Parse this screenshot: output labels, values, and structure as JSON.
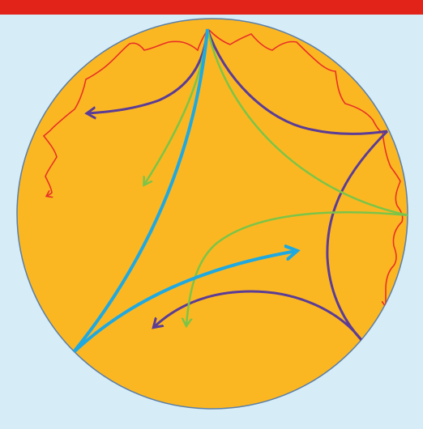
{
  "colors": {
    "background": "#d6ecf7",
    "top_bar": "#e2231a",
    "disk_fill": "#fbb722",
    "disk_outline": "#5a7fa8",
    "red_curves": "#e83027",
    "purple_curves": "#5b3c96",
    "green_curves": "#7cc447",
    "blue_curves": "#1fa9e0"
  },
  "diagram": {
    "kind": "hyperbolic-disk-geodesics",
    "curve_groups": [
      "red",
      "purple",
      "green",
      "blue"
    ]
  }
}
